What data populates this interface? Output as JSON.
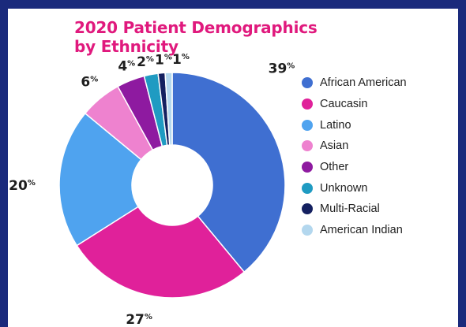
{
  "chart_data": {
    "type": "pie",
    "variant": "donut",
    "title": "2020 Patient Demographics by Ethnicity",
    "title_lines": [
      "2020 Patient Demographics",
      "by Ethnicity"
    ],
    "categories": [
      "African American",
      "Caucasin",
      "Latino",
      "Asian",
      "Other",
      "Unknown",
      "Multi-Racial",
      "American Indian"
    ],
    "values": [
      39,
      27,
      20,
      6,
      4,
      2,
      1,
      1
    ],
    "value_suffix": "%",
    "colors": [
      "#3f6fd1",
      "#e0219a",
      "#4fa3ef",
      "#ee82cf",
      "#8e1aa0",
      "#1f9bc2",
      "#142060",
      "#b3d7ee"
    ],
    "legend_position": "right"
  }
}
